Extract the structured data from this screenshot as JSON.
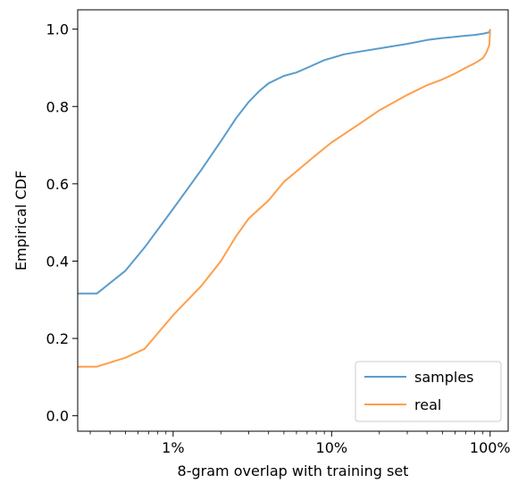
{
  "chart_data": {
    "type": "line",
    "title": "",
    "xlabel": "8-gram overlap with training set",
    "ylabel": "Empirical CDF",
    "x_scale": "log",
    "x_unit": "percent",
    "xlim": [
      0.25,
      130
    ],
    "ylim": [
      -0.04,
      1.05
    ],
    "x_ticks": [
      1,
      10,
      100
    ],
    "x_tick_labels": [
      "1%",
      "10%",
      "100%"
    ],
    "y_ticks": [
      0.0,
      0.2,
      0.4,
      0.6,
      0.8,
      1.0
    ],
    "y_tick_labels": [
      "0.0",
      "0.2",
      "0.4",
      "0.6",
      "0.8",
      "1.0"
    ],
    "grid": false,
    "legend_position": "lower-right",
    "series": [
      {
        "name": "samples",
        "color": "#5a9ccc",
        "points": [
          [
            0.25,
            0.316
          ],
          [
            0.33,
            0.316
          ],
          [
            0.5,
            0.375
          ],
          [
            0.66,
            0.435
          ],
          [
            1.0,
            0.535
          ],
          [
            1.5,
            0.635
          ],
          [
            2.0,
            0.71
          ],
          [
            2.5,
            0.77
          ],
          [
            3.0,
            0.812
          ],
          [
            3.5,
            0.84
          ],
          [
            4.0,
            0.86
          ],
          [
            5.0,
            0.879
          ],
          [
            6.0,
            0.888
          ],
          [
            7.0,
            0.9
          ],
          [
            9.0,
            0.92
          ],
          [
            12.0,
            0.935
          ],
          [
            15.0,
            0.942
          ],
          [
            20.0,
            0.95
          ],
          [
            30.0,
            0.962
          ],
          [
            40.0,
            0.972
          ],
          [
            50.0,
            0.977
          ],
          [
            60.0,
            0.98
          ],
          [
            70.0,
            0.983
          ],
          [
            80.0,
            0.985
          ],
          [
            90.0,
            0.988
          ],
          [
            99.0,
            0.992
          ],
          [
            100.0,
            1.0
          ]
        ]
      },
      {
        "name": "real",
        "color": "#ff9e4a",
        "points": [
          [
            0.25,
            0.127
          ],
          [
            0.33,
            0.127
          ],
          [
            0.5,
            0.15
          ],
          [
            0.66,
            0.173
          ],
          [
            0.8,
            0.213
          ],
          [
            1.0,
            0.26
          ],
          [
            1.5,
            0.335
          ],
          [
            2.0,
            0.4
          ],
          [
            2.5,
            0.465
          ],
          [
            3.0,
            0.51
          ],
          [
            4.0,
            0.557
          ],
          [
            5.0,
            0.605
          ],
          [
            6.0,
            0.632
          ],
          [
            7.0,
            0.655
          ],
          [
            8.0,
            0.675
          ],
          [
            10.0,
            0.707
          ],
          [
            15.0,
            0.755
          ],
          [
            20.0,
            0.79
          ],
          [
            30.0,
            0.83
          ],
          [
            40.0,
            0.855
          ],
          [
            50.0,
            0.87
          ],
          [
            60.0,
            0.885
          ],
          [
            70.0,
            0.9
          ],
          [
            80.0,
            0.912
          ],
          [
            90.0,
            0.925
          ],
          [
            95.0,
            0.94
          ],
          [
            99.0,
            0.96
          ],
          [
            100.0,
            1.0
          ]
        ]
      }
    ]
  }
}
